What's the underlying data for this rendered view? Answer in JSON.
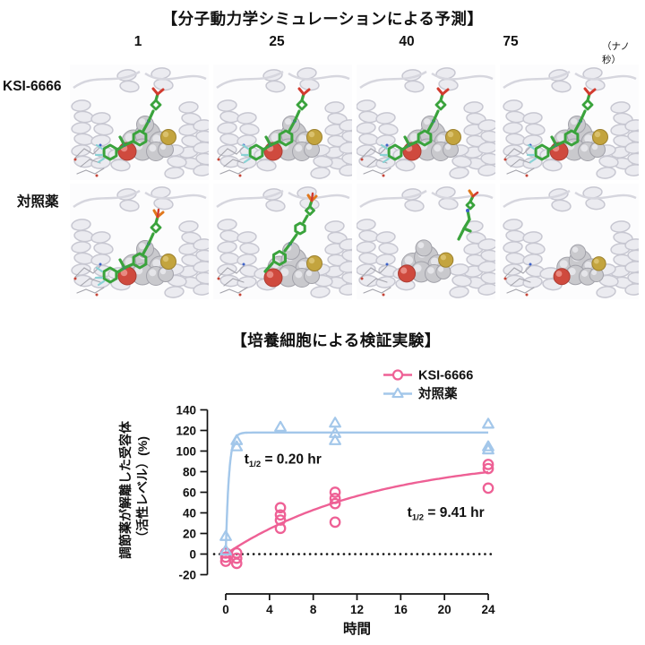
{
  "figure": {
    "md_section": {
      "title": "【分子動力学シミュレーションによる予測】",
      "time_points": [
        "1",
        "25",
        "40",
        "75"
      ],
      "time_unit": "（ナノ秒）",
      "rows": [
        {
          "label": "KSI-6666",
          "panels": [
            {
              "time": "1",
              "ligand_state": "bound"
            },
            {
              "time": "25",
              "ligand_state": "bound"
            },
            {
              "time": "40",
              "ligand_state": "bound"
            },
            {
              "time": "75",
              "ligand_state": "bound"
            }
          ]
        },
        {
          "label": "対照薬",
          "panels": [
            {
              "time": "1",
              "ligand_state": "bound"
            },
            {
              "time": "25",
              "ligand_state": "partially-dissociated"
            },
            {
              "time": "40",
              "ligand_state": "leaving-pocket"
            },
            {
              "time": "75",
              "ligand_state": "dissociated"
            }
          ]
        }
      ]
    },
    "cell_section": {
      "title": "【培養細胞による検証実験】"
    }
  },
  "chart_data": {
    "type": "scatter",
    "title": "【培養細胞による検証実験】",
    "xlabel": "時間",
    "ylabel_lines": [
      "調節薬が解離した受容体",
      "（活性レベル）(%)"
    ],
    "xlim": [
      0,
      24
    ],
    "ylim": [
      -20,
      140
    ],
    "xticks": [
      0,
      4,
      8,
      12,
      16,
      20,
      24
    ],
    "yticks": [
      140,
      120,
      100,
      80,
      60,
      40,
      20,
      0,
      -20
    ],
    "grid": false,
    "zero_baseline_style": "dotted",
    "legend_position": "top-right",
    "series": [
      {
        "name": "KSI-6666",
        "marker": "circle",
        "color": "#ee6095",
        "points": [
          [
            0,
            1
          ],
          [
            0,
            -3
          ],
          [
            0,
            -7
          ],
          [
            1,
            1
          ],
          [
            1,
            -4
          ],
          [
            1,
            -9
          ],
          [
            5,
            45
          ],
          [
            5,
            38
          ],
          [
            5,
            33
          ],
          [
            5,
            25
          ],
          [
            10,
            60
          ],
          [
            10,
            54
          ],
          [
            10,
            49
          ],
          [
            10,
            31
          ],
          [
            24,
            87
          ],
          [
            24,
            83
          ],
          [
            24,
            64
          ]
        ],
        "fit": {
          "model": "one-phase-association",
          "plateau": 96,
          "half_life_hr": 9.41
        },
        "annotation": {
          "prefix": "t",
          "sub": "1/2",
          "rest": " = 9.41 hr",
          "pos": [
            16.6,
            36
          ]
        }
      },
      {
        "name": "対照薬",
        "marker": "triangle",
        "color": "#a3c7ea",
        "points": [
          [
            0,
            17
          ],
          [
            0,
            3
          ],
          [
            1,
            110
          ],
          [
            1,
            104
          ],
          [
            5,
            123
          ],
          [
            10,
            127
          ],
          [
            10,
            117
          ],
          [
            10,
            110
          ],
          [
            24,
            126
          ],
          [
            24,
            104
          ],
          [
            24,
            101
          ]
        ],
        "fit": {
          "model": "one-phase-association",
          "plateau": 118,
          "half_life_hr": 0.2
        },
        "annotation": {
          "prefix": "t",
          "sub": "1/2",
          "rest": " = 0.20 hr",
          "pos": [
            1.7,
            88
          ]
        }
      }
    ]
  }
}
